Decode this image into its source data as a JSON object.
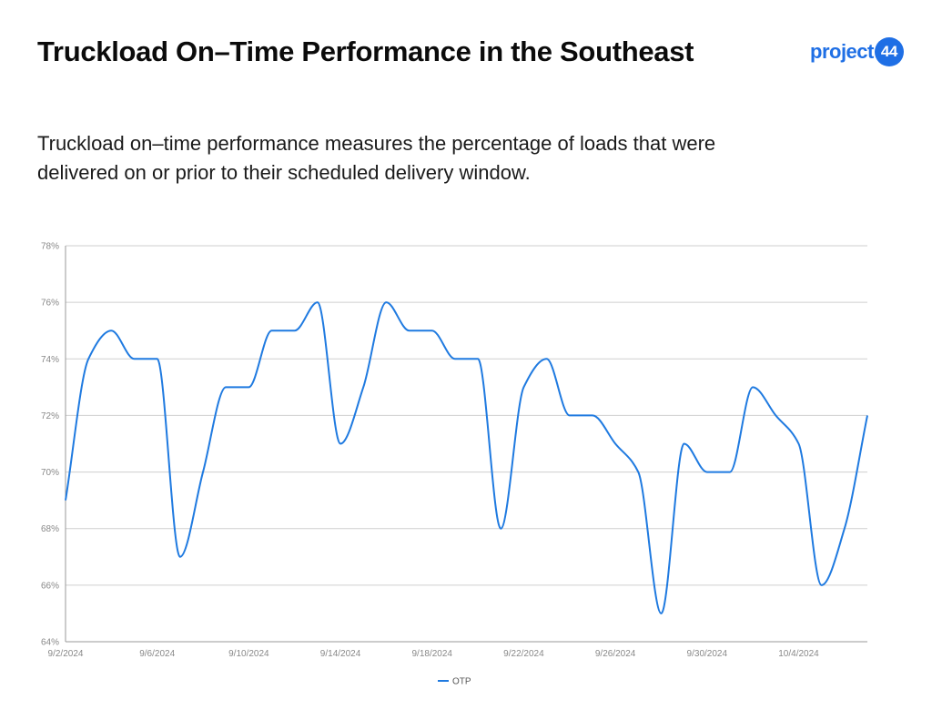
{
  "header": {
    "title": "Truckload On–Time Performance in the Southeast",
    "subtitle": "Truckload on–time performance measures the percentage of loads that were delivered on or prior to their scheduled delivery window.",
    "logo_text": "project",
    "logo_badge": "44"
  },
  "colors": {
    "series": "#1f7ae0",
    "grid": "#cfcfcf",
    "axis": "#999999",
    "brand": "#1f6fe5"
  },
  "chart_data": {
    "type": "line",
    "title": "",
    "xlabel": "",
    "ylabel": "",
    "ylim": [
      64,
      78
    ],
    "y_ticks": [
      64,
      66,
      68,
      70,
      72,
      74,
      76,
      78
    ],
    "y_tick_labels": [
      "64%",
      "66%",
      "68%",
      "70%",
      "72%",
      "74%",
      "76%",
      "78%"
    ],
    "x_tick_labels": [
      "9/2/2024",
      "9/6/2024",
      "9/10/2024",
      "9/14/2024",
      "9/18/2024",
      "9/22/2024",
      "9/26/2024",
      "9/30/2024",
      "10/4/2024"
    ],
    "x": [
      "9/2/2024",
      "9/3/2024",
      "9/4/2024",
      "9/5/2024",
      "9/6/2024",
      "9/7/2024",
      "9/8/2024",
      "9/9/2024",
      "9/10/2024",
      "9/11/2024",
      "9/12/2024",
      "9/13/2024",
      "9/14/2024",
      "9/15/2024",
      "9/16/2024",
      "9/17/2024",
      "9/18/2024",
      "9/19/2024",
      "9/20/2024",
      "9/21/2024",
      "9/22/2024",
      "9/23/2024",
      "9/24/2024",
      "9/25/2024",
      "9/26/2024",
      "9/27/2024",
      "9/28/2024",
      "9/29/2024",
      "9/30/2024",
      "10/1/2024",
      "10/2/2024",
      "10/3/2024",
      "10/4/2024",
      "10/5/2024",
      "10/6/2024",
      "10/7/2024"
    ],
    "series": [
      {
        "name": "OTP",
        "values": [
          69,
          74,
          75,
          74,
          74,
          67,
          70,
          73,
          73,
          75,
          75,
          76,
          71,
          73,
          76,
          75,
          75,
          74,
          74,
          68,
          73,
          74,
          72,
          72,
          71,
          70,
          65,
          71,
          70,
          70,
          73,
          72,
          71,
          66,
          68,
          72
        ]
      }
    ],
    "grid": true,
    "legend": "bottom-center",
    "legend_entries": [
      "OTP"
    ]
  }
}
